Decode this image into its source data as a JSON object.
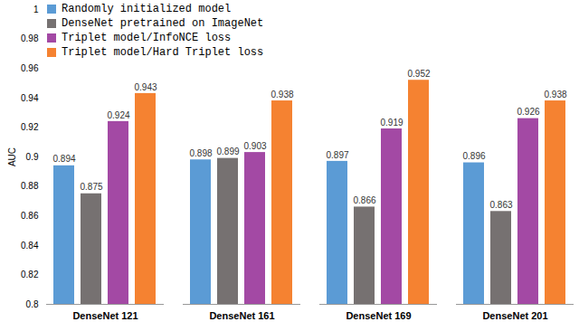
{
  "chart_data": {
    "type": "bar",
    "y_label": "AUC",
    "categories": [
      "DenseNet 121",
      "DenseNet 161",
      "DenseNet 169",
      "DenseNet 201"
    ],
    "series": [
      {
        "name": "Randomly initialized model",
        "color": "#5b9bd5",
        "values": [
          0.894,
          0.898,
          0.897,
          0.896
        ]
      },
      {
        "name": "DenseNet pretrained on ImageNet",
        "color": "#767171",
        "values": [
          0.875,
          0.899,
          0.866,
          0.863
        ]
      },
      {
        "name": "Triplet model/InfoNCE loss",
        "color": "#a349a4",
        "values": [
          0.924,
          0.903,
          0.919,
          0.926
        ]
      },
      {
        "name": "Triplet model/Hard Triplet loss",
        "color": "#f58231",
        "values": [
          0.943,
          0.938,
          0.952,
          0.938
        ]
      }
    ],
    "ylim": [
      0.8,
      1
    ],
    "yticks": [
      0.8,
      0.82,
      0.84,
      0.86,
      0.88,
      0.9,
      0.92,
      0.94,
      0.96,
      0.98,
      1
    ],
    "grid": false,
    "legend": "top-left",
    "data_labels": true
  }
}
